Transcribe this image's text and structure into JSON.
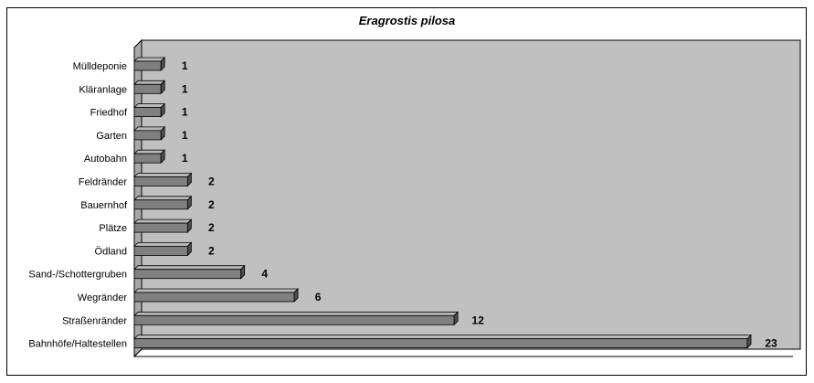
{
  "chart_data": {
    "type": "bar",
    "orientation": "horizontal",
    "title": "Eragrostis pilosa",
    "xlabel": "",
    "ylabel": "",
    "categories": [
      "Mülldeponie",
      "Kläranlage",
      "Friedhof",
      "Garten",
      "Autobahn",
      "Feldränder",
      "Bauernhof",
      "Plätze",
      "Ödland",
      "Sand-/Schottergruben",
      "Wegränder",
      "Straßenränder",
      "Bahnhöfe/Haltestellen"
    ],
    "values": [
      1,
      1,
      1,
      1,
      1,
      2,
      2,
      2,
      2,
      4,
      6,
      12,
      23
    ],
    "xlim": [
      0,
      23
    ],
    "grid": false,
    "legend": "none",
    "colors": {
      "plot_background": "#c0c0c0",
      "bar_front": "#808080",
      "bar_top": "#b8b8b8",
      "bar_side": "#4d4d4d",
      "outline": "#000000"
    }
  }
}
